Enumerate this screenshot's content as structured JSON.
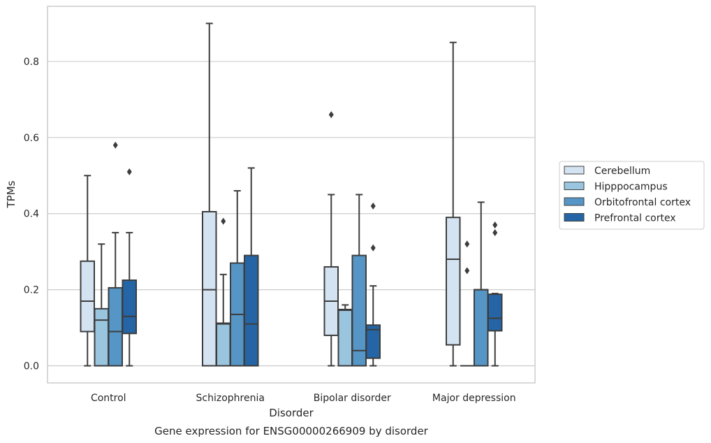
{
  "caption": "Gene expression for ENSG00000266909 by disorder",
  "chart_data": {
    "type": "box",
    "xlabel": "Disorder",
    "ylabel": "TPMs",
    "ylim": [
      -0.045,
      0.945
    ],
    "yticks": [
      0.0,
      0.2,
      0.4,
      0.6,
      0.8
    ],
    "ytick_labels": [
      "0.0",
      "0.2",
      "0.4",
      "0.6",
      "0.8"
    ],
    "grid": "horizontal",
    "legend_position": "right",
    "categories": [
      "Control",
      "Schizophrenia",
      "Bipolar disorder",
      "Major depression"
    ],
    "series": [
      {
        "name": "Cerebellum",
        "color": "#d4e3f1",
        "boxes": [
          {
            "whislo": 0.0,
            "q1": 0.09,
            "med": 0.17,
            "q3": 0.275,
            "whishi": 0.5,
            "fliers": []
          },
          {
            "whislo": 0.0,
            "q1": 0.0,
            "med": 0.2,
            "q3": 0.405,
            "whishi": 0.9,
            "fliers": []
          },
          {
            "whislo": 0.0,
            "q1": 0.08,
            "med": 0.17,
            "q3": 0.26,
            "whishi": 0.45,
            "fliers": [
              0.66
            ]
          },
          {
            "whislo": 0.0,
            "q1": 0.055,
            "med": 0.28,
            "q3": 0.39,
            "whishi": 0.85,
            "fliers": []
          }
        ]
      },
      {
        "name": "Hipppocampus",
        "color": "#9ac5de",
        "boxes": [
          {
            "whislo": 0.0,
            "q1": 0.0,
            "med": 0.12,
            "q3": 0.15,
            "whishi": 0.32,
            "fliers": []
          },
          {
            "whislo": 0.0,
            "q1": 0.0,
            "med": 0.11,
            "q3": 0.112,
            "whishi": 0.24,
            "fliers": [
              0.38
            ]
          },
          {
            "whislo": 0.0,
            "q1": 0.0,
            "med": 0.146,
            "q3": 0.148,
            "whishi": 0.16,
            "fliers": []
          },
          {
            "whislo": 0.0,
            "q1": 0.0,
            "med": 0.0,
            "q3": 0.0,
            "whishi": 0.0,
            "fliers": [
              0.32,
              0.25
            ]
          }
        ]
      },
      {
        "name": "Orbitofrontal cortex",
        "color": "#5596c6",
        "boxes": [
          {
            "whislo": 0.0,
            "q1": 0.0,
            "med": 0.09,
            "q3": 0.205,
            "whishi": 0.35,
            "fliers": [
              0.58
            ]
          },
          {
            "whislo": 0.0,
            "q1": 0.0,
            "med": 0.135,
            "q3": 0.27,
            "whishi": 0.46,
            "fliers": []
          },
          {
            "whislo": 0.0,
            "q1": 0.0,
            "med": 0.04,
            "q3": 0.29,
            "whishi": 0.45,
            "fliers": []
          },
          {
            "whislo": 0.0,
            "q1": 0.0,
            "med": 0.2,
            "q3": 0.2,
            "whishi": 0.43,
            "fliers": []
          }
        ]
      },
      {
        "name": "Prefrontal cortex",
        "color": "#2565a6",
        "boxes": [
          {
            "whislo": 0.0,
            "q1": 0.085,
            "med": 0.13,
            "q3": 0.225,
            "whishi": 0.35,
            "fliers": [
              0.51
            ]
          },
          {
            "whislo": 0.0,
            "q1": 0.0,
            "med": 0.11,
            "q3": 0.29,
            "whishi": 0.52,
            "fliers": []
          },
          {
            "whislo": 0.0,
            "q1": 0.02,
            "med": 0.095,
            "q3": 0.107,
            "whishi": 0.21,
            "fliers": [
              0.42,
              0.31
            ]
          },
          {
            "whislo": 0.0,
            "q1": 0.092,
            "med": 0.125,
            "q3": 0.188,
            "whishi": 0.19,
            "fliers": [
              0.37,
              0.35
            ]
          }
        ]
      }
    ]
  }
}
